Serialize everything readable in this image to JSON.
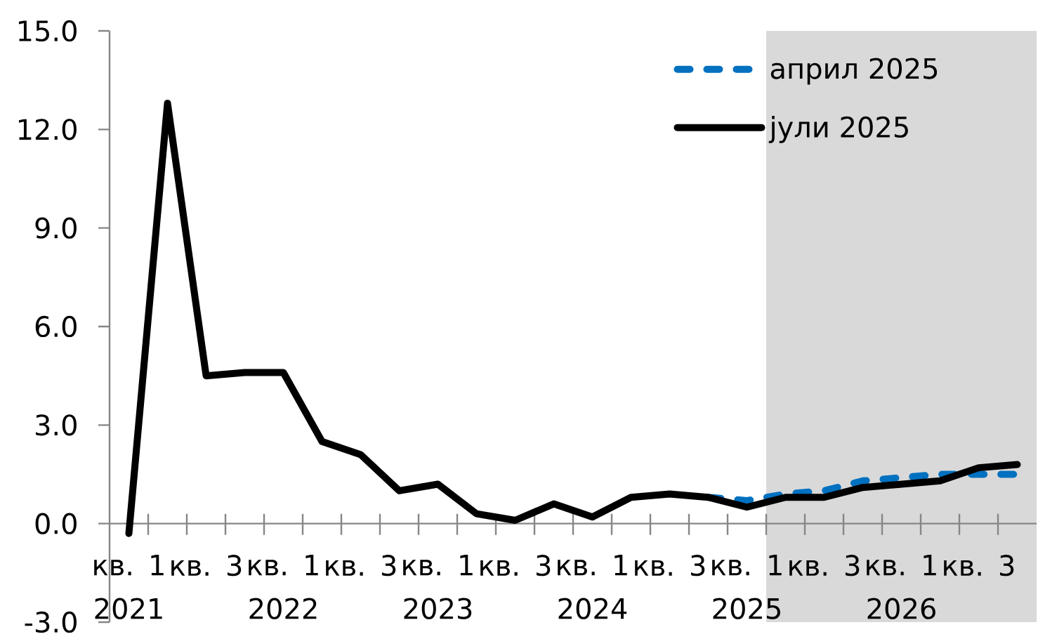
{
  "chart_data": {
    "type": "line",
    "categories": [
      "кв. 1 2021",
      null,
      "кв. 3",
      null,
      "кв. 1 2022",
      null,
      "кв. 3",
      null,
      "кв. 1 2023",
      null,
      "кв. 3",
      null,
      "кв. 1 2024",
      null,
      "кв. 3",
      null,
      "кв. 1 2025",
      null,
      "кв. 3",
      null,
      "кв. 1 2026",
      null,
      "кв. 3",
      null
    ],
    "series": [
      {
        "name": "април 2025",
        "color": "#0070c0",
        "line_style": "dashed",
        "values": [
          null,
          null,
          null,
          null,
          null,
          null,
          null,
          null,
          null,
          null,
          null,
          null,
          null,
          null,
          null,
          0.8,
          0.7,
          0.9,
          1.0,
          1.3,
          1.4,
          1.5,
          1.5,
          1.5
        ]
      },
      {
        "name": "јули 2025",
        "color": "#000000",
        "line_style": "solid",
        "values": [
          -0.3,
          12.8,
          4.5,
          4.6,
          4.6,
          2.5,
          2.1,
          1.0,
          1.2,
          0.3,
          0.1,
          0.6,
          0.2,
          0.8,
          0.9,
          0.8,
          0.5,
          0.8,
          0.8,
          1.1,
          1.2,
          1.3,
          1.7,
          1.8
        ]
      }
    ],
    "ylim": [
      -3,
      15
    ],
    "yticks": [
      {
        "value": -3,
        "label": "-3.0"
      },
      {
        "value": 0,
        "label": "0.0"
      },
      {
        "value": 3,
        "label": "3.0"
      },
      {
        "value": 6,
        "label": "6.0"
      },
      {
        "value": 9,
        "label": "9.0"
      },
      {
        "value": 12,
        "label": "12.0"
      },
      {
        "value": 15,
        "label": "15.0"
      }
    ],
    "legend": "top right"
  }
}
